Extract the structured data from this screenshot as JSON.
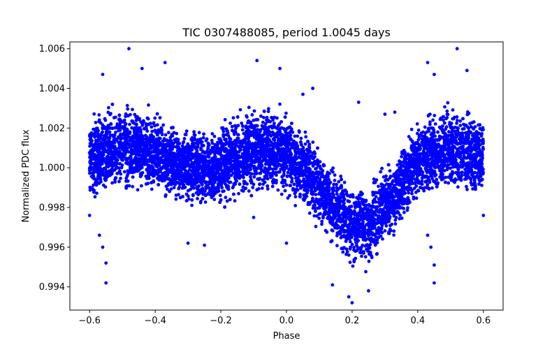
{
  "chart_data": {
    "type": "scatter",
    "title": "TIC 0307488085, period 1.0045 days",
    "xlabel": "Phase",
    "ylabel": "Normalized PDC flux",
    "xlim": [
      -0.66,
      0.66
    ],
    "ylim": [
      0.99283,
      1.00634
    ],
    "xticks": [
      -0.6,
      -0.4,
      -0.2,
      0.0,
      0.2,
      0.4,
      0.6
    ],
    "xtick_labels": [
      "−0.6",
      "−0.4",
      "−0.2",
      "0.0",
      "0.2",
      "0.4",
      "0.6"
    ],
    "yticks": [
      0.994,
      0.996,
      0.998,
      1.0,
      1.002,
      1.004,
      1.006
    ],
    "ytick_labels": [
      "0.994",
      "0.996",
      "0.998",
      "1.000",
      "1.002",
      "1.004",
      "1.006"
    ],
    "marker_color": "#0000ff",
    "grid": false,
    "series": [
      {
        "name": "flux",
        "envelope": {
          "phase": [
            -0.6,
            -0.55,
            -0.5,
            -0.45,
            -0.4,
            -0.35,
            -0.3,
            -0.25,
            -0.2,
            -0.15,
            -0.1,
            -0.05,
            0.0,
            0.05,
            0.1,
            0.15,
            0.2,
            0.25,
            0.3,
            0.35,
            0.4,
            0.45,
            0.5,
            0.55,
            0.6
          ],
          "center": [
            1.0005,
            1.0008,
            1.001,
            1.0009,
            1.0007,
            1.0003,
            1.0,
            0.9999,
            1.0002,
            1.0006,
            1.0009,
            1.001,
            1.0006,
            0.9999,
            0.999,
            0.998,
            0.9972,
            0.997,
            0.998,
            0.9993,
            1.0003,
            1.0008,
            1.001,
            1.0008,
            1.0005
          ],
          "halfwidth": [
            0.0021,
            0.0022,
            0.0023,
            0.0022,
            0.0021,
            0.002,
            0.002,
            0.002,
            0.0021,
            0.0022,
            0.0022,
            0.0022,
            0.0022,
            0.0021,
            0.002,
            0.002,
            0.0021,
            0.0021,
            0.0021,
            0.0021,
            0.0021,
            0.0022,
            0.0023,
            0.0022,
            0.0021
          ]
        },
        "outliers": [
          [
            -0.48,
            1.006
          ],
          [
            0.52,
            1.006
          ],
          [
            -0.09,
            1.0054
          ],
          [
            -0.37,
            1.0053
          ],
          [
            0.43,
            1.0053
          ],
          [
            -0.56,
            1.0047
          ],
          [
            0.45,
            1.0047
          ],
          [
            -0.55,
            0.9942
          ],
          [
            0.45,
            0.9942
          ],
          [
            -0.55,
            0.9952
          ],
          [
            0.45,
            0.9951
          ],
          [
            -0.56,
            0.996
          ],
          [
            0.44,
            0.996
          ],
          [
            -0.57,
            0.9966
          ],
          [
            0.43,
            0.9966
          ],
          [
            0.2,
            0.9932
          ],
          [
            0.19,
            0.9935
          ],
          [
            0.25,
            0.9938
          ],
          [
            0.14,
            0.9941
          ],
          [
            0.22,
            1.0033
          ],
          [
            -0.02,
            1.005
          ],
          [
            0.05,
            1.0037
          ],
          [
            0.08,
            1.004
          ],
          [
            -0.3,
            0.9962
          ],
          [
            -0.25,
            0.9961
          ],
          [
            -0.1,
            0.9975
          ],
          [
            0.0,
            0.9962
          ],
          [
            -0.6,
            0.9976
          ],
          [
            0.6,
            0.9976
          ],
          [
            -0.44,
            1.005
          ],
          [
            0.55,
            1.0049
          ],
          [
            0.3,
            1.0027
          ],
          [
            0.33,
            1.0028
          ]
        ]
      }
    ]
  }
}
